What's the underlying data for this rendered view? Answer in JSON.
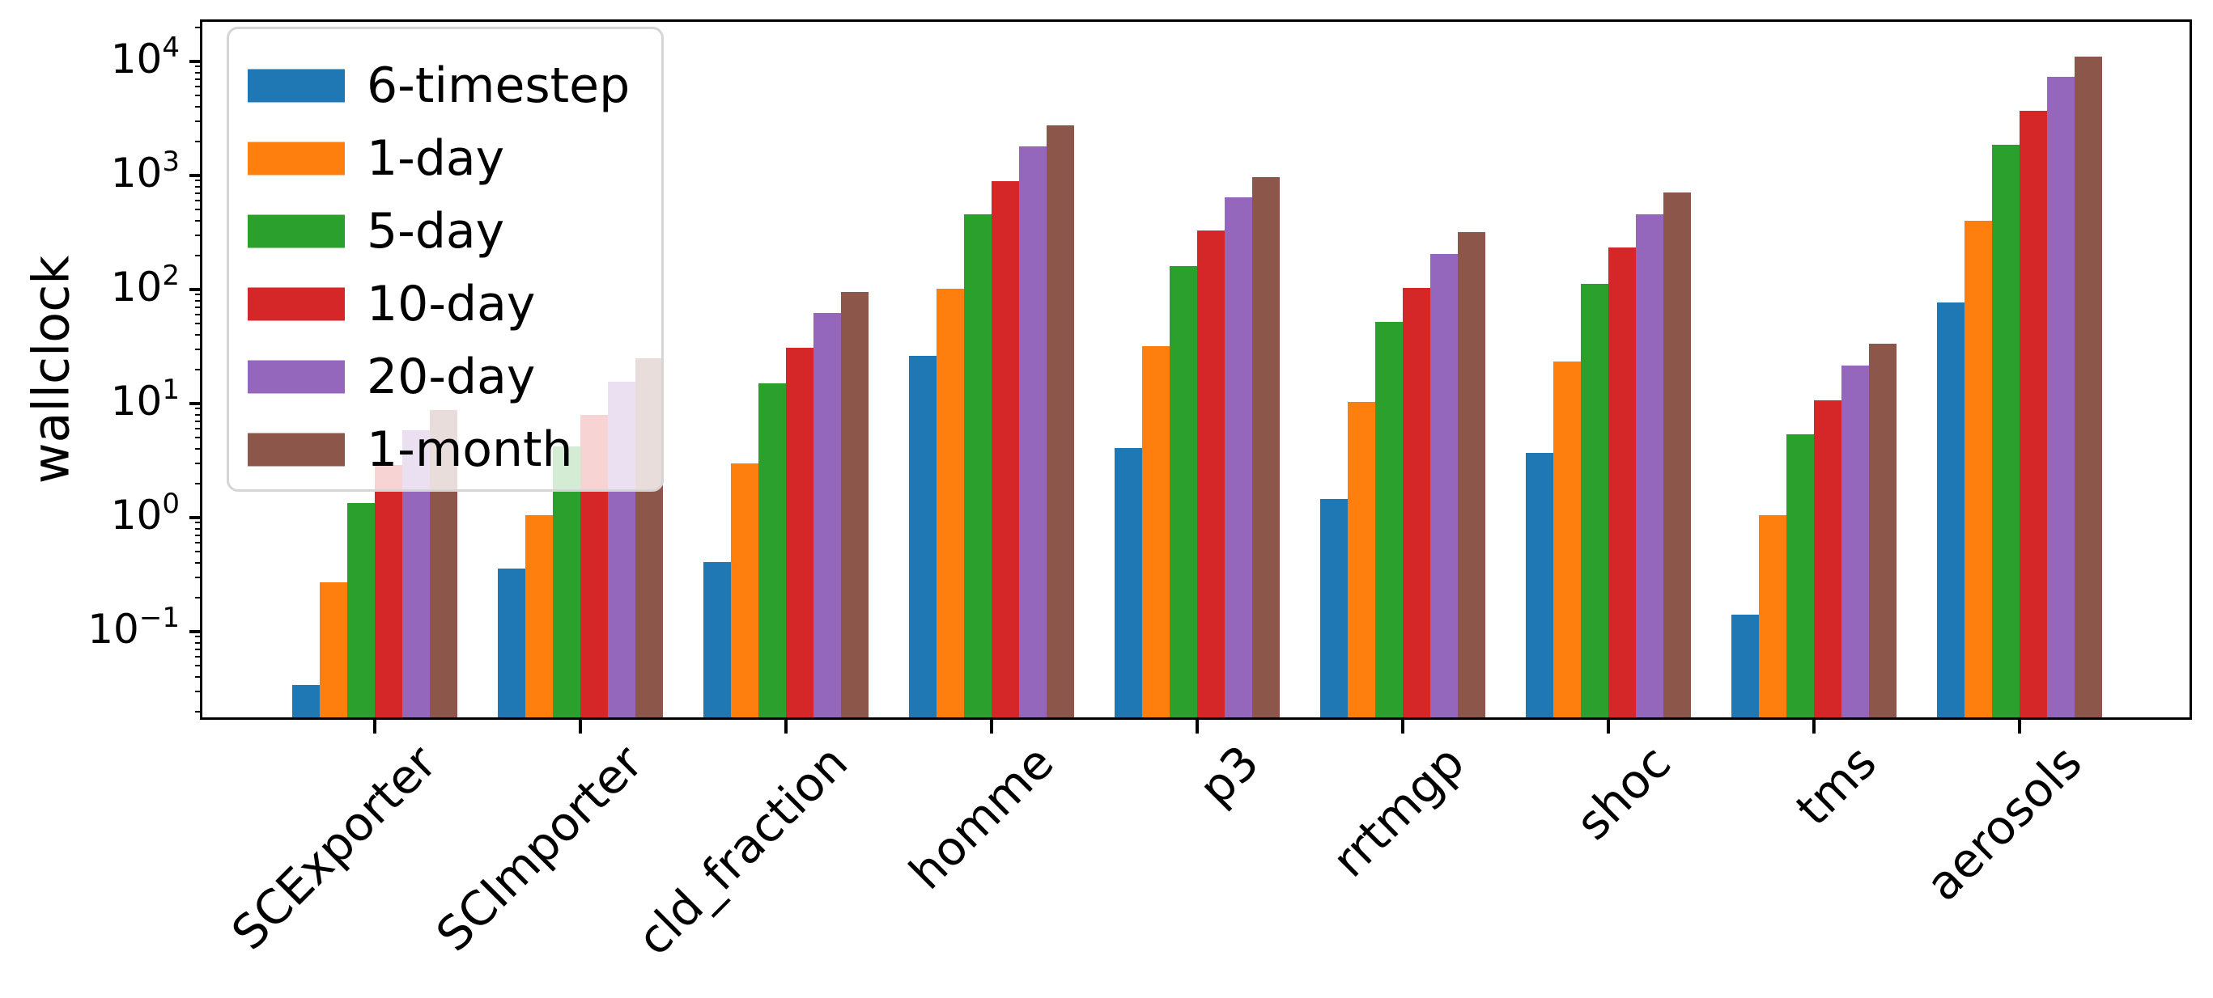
{
  "chart_data": {
    "type": "bar",
    "yscale": "log",
    "title": "",
    "xlabel": "",
    "ylabel": "wallclock",
    "ylim": [
      0.0178,
      22000
    ],
    "y_major_tick_exponents": [
      -1,
      0,
      1,
      2,
      3,
      4
    ],
    "grid": false,
    "legend_position": "upper left",
    "categories": [
      "SCExporter",
      "SCImporter",
      "cld_fraction",
      "homme",
      "p3",
      "rrtmgp",
      "shoc",
      "tms",
      "aerosols"
    ],
    "series": [
      {
        "name": "6-timestep",
        "color": "#1f77b4",
        "values": [
          0.034,
          0.36,
          0.41,
          26,
          4.1,
          1.45,
          3.7,
          0.14,
          77
        ]
      },
      {
        "name": "1-day",
        "color": "#ff7f0e",
        "values": [
          0.27,
          1.05,
          3.0,
          102,
          32,
          10.3,
          23.5,
          1.05,
          400
        ]
      },
      {
        "name": "5-day",
        "color": "#2ca02c",
        "values": [
          1.35,
          4.2,
          15,
          460,
          160,
          52,
          113,
          5.4,
          1850
        ]
      },
      {
        "name": "10-day",
        "color": "#d62728",
        "values": [
          2.9,
          8.0,
          31,
          890,
          330,
          103,
          235,
          10.6,
          3700
        ]
      },
      {
        "name": "20-day",
        "color": "#9467bd",
        "values": [
          5.8,
          15.5,
          62,
          1800,
          640,
          205,
          460,
          21.5,
          7300
        ]
      },
      {
        "name": "1-month",
        "color": "#8c564b",
        "values": [
          8.8,
          25,
          95,
          2750,
          960,
          320,
          710,
          33.5,
          11000
        ]
      }
    ]
  }
}
